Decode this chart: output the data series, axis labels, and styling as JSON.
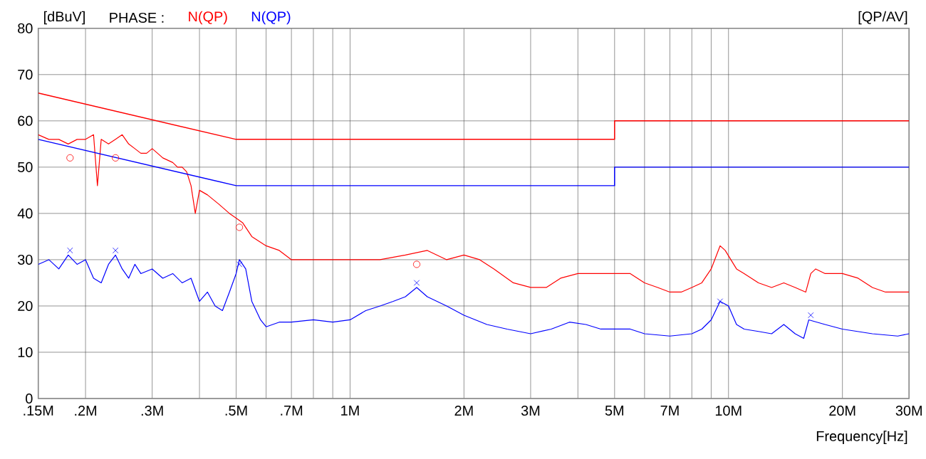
{
  "chart_data": {
    "type": "line",
    "ylabel": "[dBuV]",
    "xlabel": "Frequency[Hz]",
    "legend_title": "PHASE :",
    "legend": "top left",
    "annotations": [
      "[QP/AV]"
    ],
    "log": "x",
    "grid": true,
    "marker": "none",
    "xlim": [
      0.15,
      30
    ],
    "ylim": [
      0,
      80
    ],
    "xticks": [
      {
        "value": 0.15,
        "label": ".15M"
      },
      {
        "value": 0.2,
        "label": ".2M"
      },
      {
        "value": 0.3,
        "label": ".3M"
      },
      {
        "value": 0.4,
        "label": null
      },
      {
        "value": 0.5,
        "label": ".5M"
      },
      {
        "value": 0.6,
        "label": null
      },
      {
        "value": 0.7,
        "label": ".7M"
      },
      {
        "value": 0.8,
        "label": null
      },
      {
        "value": 0.9,
        "label": null
      },
      {
        "value": 1,
        "label": "1M"
      },
      {
        "value": 2,
        "label": "2M"
      },
      {
        "value": 3,
        "label": "3M"
      },
      {
        "value": 4,
        "label": null
      },
      {
        "value": 5,
        "label": "5M"
      },
      {
        "value": 6,
        "label": null
      },
      {
        "value": 7,
        "label": "7M"
      },
      {
        "value": 8,
        "label": null
      },
      {
        "value": 9,
        "label": null
      },
      {
        "value": 10,
        "label": "10M"
      },
      {
        "value": 20,
        "label": "20M"
      },
      {
        "value": 30,
        "label": "30M"
      }
    ],
    "yticks": [
      0,
      10,
      20,
      30,
      40,
      50,
      60,
      70,
      80
    ],
    "series": [
      {
        "name": "N(QP)",
        "color": "#ff0000",
        "x": [
          0.15,
          0.16,
          0.17,
          0.18,
          0.19,
          0.2,
          0.21,
          0.215,
          0.22,
          0.23,
          0.24,
          0.25,
          0.26,
          0.27,
          0.28,
          0.29,
          0.3,
          0.31,
          0.32,
          0.34,
          0.35,
          0.36,
          0.37,
          0.38,
          0.39,
          0.4,
          0.42,
          0.45,
          0.48,
          0.5,
          0.52,
          0.55,
          0.6,
          0.65,
          0.7,
          0.8,
          0.9,
          1.0,
          1.2,
          1.4,
          1.6,
          1.8,
          2.0,
          2.2,
          2.4,
          2.7,
          3.0,
          3.3,
          3.6,
          4.0,
          4.5,
          5.0,
          5.5,
          6.0,
          6.5,
          7.0,
          7.5,
          8.0,
          8.5,
          9.0,
          9.5,
          9.8,
          10.5,
          11,
          12,
          13,
          14,
          15,
          16,
          16.5,
          17,
          18,
          20,
          22,
          24,
          26,
          28,
          30
        ],
        "values": [
          57,
          56,
          56,
          55,
          56,
          56,
          57,
          46,
          56,
          55,
          56,
          57,
          55,
          54,
          53,
          53,
          54,
          53,
          52,
          51,
          50,
          50,
          49,
          46,
          40,
          45,
          44,
          42,
          40,
          39,
          38,
          35,
          33,
          32,
          30,
          30,
          30,
          30,
          30,
          31,
          32,
          30,
          31,
          30,
          28,
          25,
          24,
          24,
          26,
          27,
          27,
          27,
          27,
          25,
          24,
          23,
          23,
          24,
          25,
          28,
          33,
          32,
          28,
          27,
          25,
          24,
          25,
          24,
          23,
          27,
          28,
          27,
          27,
          26,
          24,
          23,
          23,
          23
        ]
      },
      {
        "name": "N(QP)",
        "color": "#0000ff",
        "x": [
          0.15,
          0.16,
          0.17,
          0.18,
          0.19,
          0.2,
          0.21,
          0.22,
          0.23,
          0.24,
          0.25,
          0.26,
          0.27,
          0.28,
          0.3,
          0.32,
          0.34,
          0.36,
          0.38,
          0.4,
          0.42,
          0.44,
          0.46,
          0.48,
          0.5,
          0.51,
          0.53,
          0.55,
          0.58,
          0.6,
          0.65,
          0.7,
          0.8,
          0.9,
          1.0,
          1.1,
          1.2,
          1.3,
          1.4,
          1.5,
          1.6,
          1.8,
          2.0,
          2.3,
          2.6,
          3.0,
          3.4,
          3.8,
          4.2,
          4.6,
          5.0,
          5.5,
          6.0,
          7.0,
          8.0,
          8.5,
          9.0,
          9.5,
          10,
          10.5,
          11,
          12,
          13,
          14,
          15,
          15.8,
          16.3,
          18,
          20,
          24,
          28,
          30
        ],
        "values": [
          29,
          30,
          28,
          31,
          29,
          30,
          26,
          25,
          29,
          31,
          28,
          26,
          29,
          27,
          28,
          26,
          27,
          25,
          26,
          21,
          23,
          20,
          19,
          23,
          27,
          30,
          28,
          21,
          17,
          15.5,
          16.5,
          16.5,
          17,
          16.5,
          17,
          19,
          20,
          21,
          22,
          24,
          22,
          20,
          18,
          16,
          15,
          14,
          15,
          16.5,
          16,
          15,
          15,
          15,
          14,
          13.5,
          14,
          15,
          17,
          21,
          20,
          16,
          15,
          14.5,
          14,
          16,
          14,
          13,
          17,
          16,
          15,
          14,
          13.5,
          14
        ]
      },
      {
        "color": "#ff0000",
        "x": [
          0.15,
          0.5,
          0.5,
          5,
          5,
          30
        ],
        "values": [
          66,
          56,
          56,
          56,
          60,
          60
        ]
      },
      {
        "color": "#0000ff",
        "x": [
          0.15,
          0.5,
          0.5,
          5,
          5,
          30
        ],
        "values": [
          56,
          46,
          46,
          46,
          50,
          50
        ]
      },
      {
        "type": "scatter",
        "marker": "circle",
        "color": "#ff0000",
        "x": [
          0.182,
          0.24,
          0.51,
          1.5
        ],
        "values": [
          52,
          52,
          37,
          29
        ]
      },
      {
        "type": "scatter",
        "marker": "cross",
        "color": "#0000ff",
        "x": [
          0.182,
          0.24,
          0.51,
          1.5,
          9.5,
          16.5
        ],
        "values": [
          32,
          32,
          29,
          25,
          21,
          18
        ]
      }
    ]
  }
}
